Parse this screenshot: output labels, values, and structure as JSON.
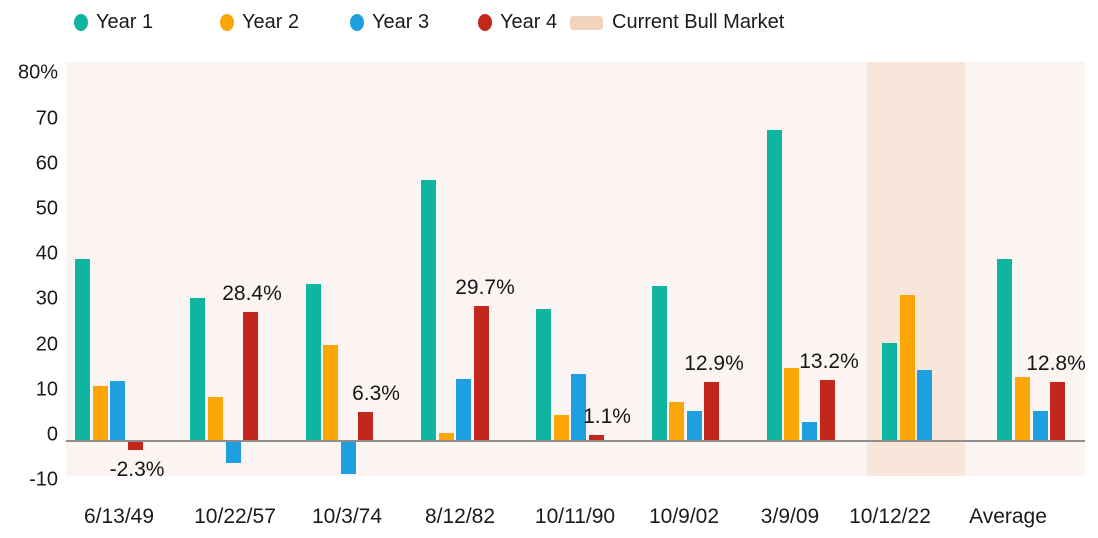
{
  "legend": {
    "items": [
      {
        "label": "Year 1",
        "color": "#0FB5A0",
        "shape": "circle"
      },
      {
        "label": "Year 2",
        "color": "#F9A606",
        "shape": "circle"
      },
      {
        "label": "Year 3",
        "color": "#1E9FDF",
        "shape": "circle"
      },
      {
        "label": "Year 4",
        "color": "#C3271B",
        "shape": "circle"
      },
      {
        "label": "Current Bull Market",
        "color": "#F2D4BC",
        "shape": "swatch"
      }
    ]
  },
  "chart_data": {
    "type": "bar",
    "title": "",
    "categories": [
      "6/13/49",
      "10/22/57",
      "10/3/74",
      "8/12/82",
      "10/11/90",
      "10/9/02",
      "3/9/09",
      "10/12/22",
      "Average"
    ],
    "series": [
      {
        "name": "Year 1",
        "color": "#0FB5A0",
        "values": [
          40,
          31.5,
          34.5,
          57.5,
          29,
          34,
          68.5,
          21.5,
          40
        ]
      },
      {
        "name": "Year 2",
        "color": "#F9A606",
        "values": [
          12,
          9.5,
          21,
          1.5,
          5.5,
          8.5,
          16,
          32,
          14
        ]
      },
      {
        "name": "Year 3",
        "color": "#1E9FDF",
        "values": [
          13,
          -5,
          -7.5,
          13.5,
          14.5,
          6.5,
          4,
          15.5,
          6.5
        ]
      },
      {
        "name": "Year 4",
        "color": "#C3271B",
        "values": [
          -2.3,
          28.4,
          6.3,
          29.7,
          1.1,
          12.9,
          13.2,
          null,
          12.8
        ]
      }
    ],
    "data_labels": {
      "series": "Year 4",
      "values": [
        "-2.3%",
        "28.4%",
        "6.3%",
        "29.7%",
        "1.1%",
        "12.9%",
        "13.2%",
        null,
        "12.8%"
      ]
    },
    "highlight_band": {
      "category": "10/12/22",
      "label": "Current Bull Market",
      "color": "#F7E6D9"
    },
    "y_axis": {
      "min": -10,
      "max": 80,
      "tick_step": 10,
      "tick_labels": [
        "80%",
        "70",
        "60",
        "50",
        "40",
        "30",
        "20",
        "10",
        "0",
        "-10"
      ],
      "tick_values": [
        80,
        70,
        60,
        50,
        40,
        30,
        20,
        10,
        0,
        -10
      ]
    },
    "grid": "off",
    "legend_position": "top",
    "plot_background": "#FBF4F2"
  }
}
